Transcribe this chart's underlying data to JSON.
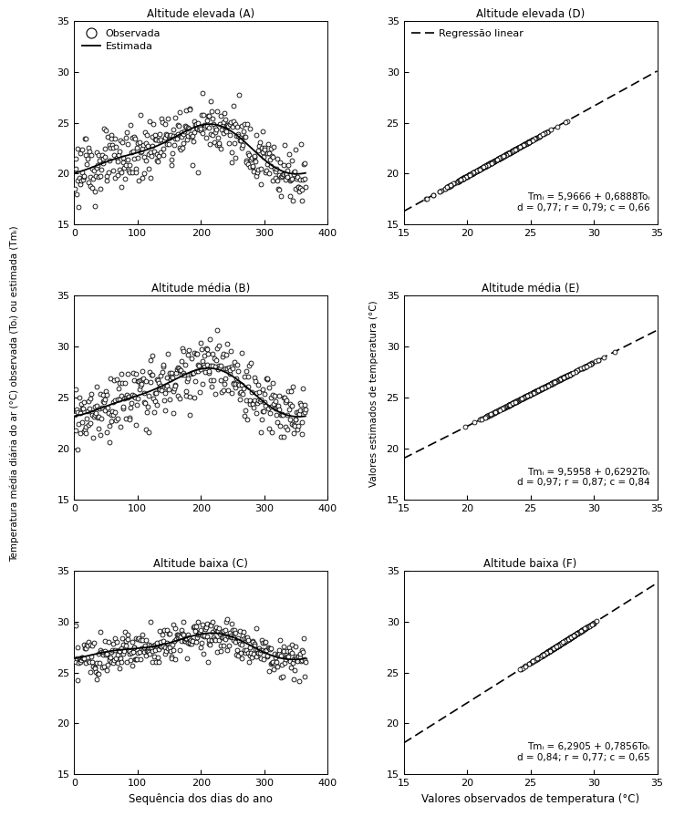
{
  "titles_left": [
    "Altitude elevada (A)",
    "Altitude média (B)",
    "Altitude baixa (C)"
  ],
  "titles_right": [
    "Altitude elevada (D)",
    "Altitude média (E)",
    "Altitude baixa (F)"
  ],
  "equations": [
    "Tmᵢ = 5,9666 + 0,6888Toᵢ\nd = 0,77; r = 0,79; c = 0,66",
    "Tmᵢ = 9,5958 + 0,6292Toᵢ\nd = 0,97; r = 0,87; c = 0,84",
    "Tmᵢ = 6,2905 + 0,7856Toᵢ\nd = 0,84; r = 0,77; c = 0,65"
  ],
  "regression_label": "Regressão linear",
  "legend_obs": "Observada",
  "legend_est": "Estimada",
  "xlim_left": [
    0,
    400
  ],
  "ylim_all": [
    15,
    35
  ],
  "xlim_right": [
    15,
    35
  ],
  "xticks_left": [
    0,
    100,
    200,
    300,
    400
  ],
  "yticks_all": [
    15,
    20,
    25,
    30,
    35
  ],
  "xticks_right": [
    15,
    20,
    25,
    30,
    35
  ],
  "xlabel_left": "Sequência dos dias do ano",
  "xlabel_right": "Valores observados de temperatura (°C)",
  "ylabel_left": "Temperatura média diária do ar (°C) observada (Toᵢ) ou estimada (Tmᵢ)",
  "ylabel_right": "Valores estimados de temperatura (°C)",
  "figsize": [
    7.39,
    9.18
  ],
  "dpi": 100,
  "intercepts": [
    5.9666,
    9.5958,
    6.2905
  ],
  "slopes": [
    0.6888,
    0.6292,
    0.7856
  ],
  "series_A": {
    "mean": 22.3,
    "amp": 2.2,
    "phase_days": 195,
    "amp2": 0.6,
    "phase2_days": 50,
    "noise": 1.4
  },
  "series_B": {
    "mean": 25.4,
    "amp": 2.2,
    "phase_days": 195,
    "amp2": 0.5,
    "phase2_days": 50,
    "noise": 1.5
  },
  "series_C": {
    "mean": 27.5,
    "amp": 1.1,
    "phase_days": 195,
    "amp2": 0.4,
    "phase2_days": 50,
    "noise": 0.9
  }
}
